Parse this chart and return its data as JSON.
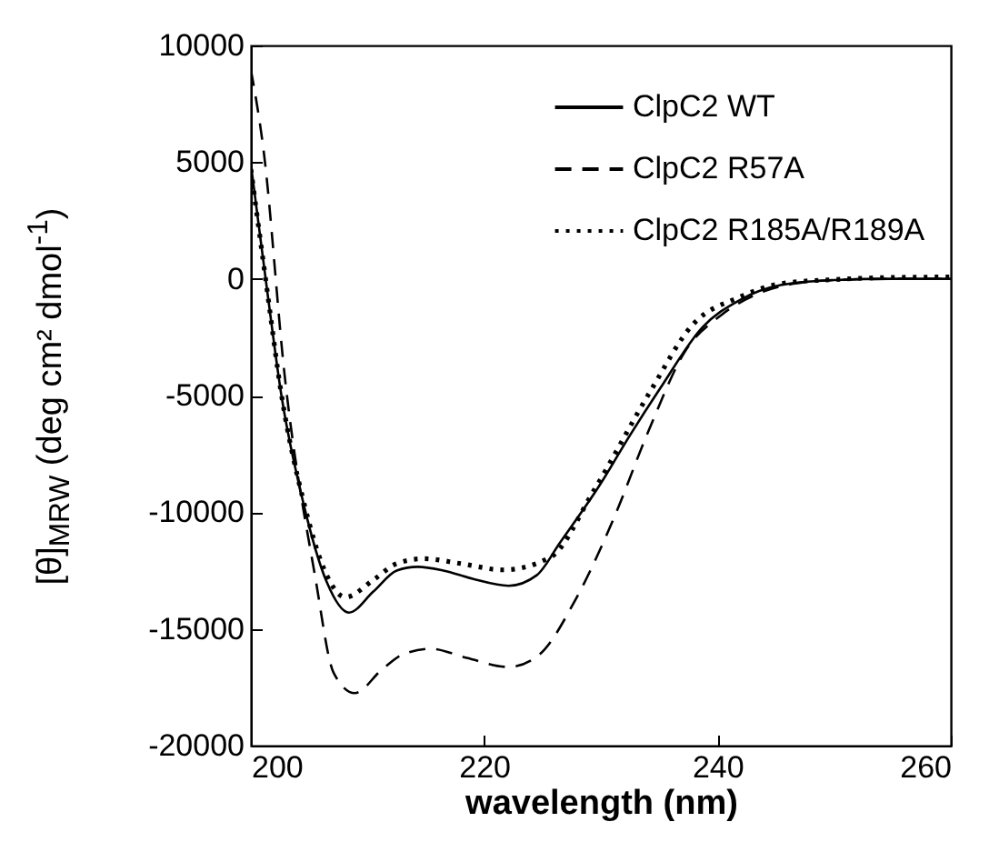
{
  "chart_data": {
    "type": "line",
    "xlabel": "wavelength (nm)",
    "ylabel": "[θ]$_{MRW}$ (deg cm² dmol$^{-1}$)",
    "xlim": [
      200,
      260
    ],
    "ylim": [
      -20000,
      10000
    ],
    "xticks": [
      200,
      220,
      240,
      260
    ],
    "yticks": [
      -20000,
      -15000,
      -10000,
      -5000,
      0,
      5000,
      10000
    ],
    "legend": "top right",
    "grid": false,
    "series": [
      {
        "name": "ClpC2 WT",
        "color": "#000000",
        "line_style": "solid",
        "x": [
          200,
          201.4,
          202.6,
          204.5,
          206.5,
          208.4,
          210.5,
          212.5,
          214.3,
          216.5,
          219,
          222.1,
          224.5,
          226.5,
          229.9,
          232.5,
          235.1,
          238.7,
          241.9,
          245.5,
          250,
          255,
          260
        ],
        "values": [
          4900,
          -520,
          -4940,
          -9610,
          -12990,
          -14300,
          -13400,
          -12500,
          -12340,
          -12500,
          -12850,
          -13150,
          -12700,
          -11300,
          -8840,
          -6700,
          -4680,
          -2080,
          -910,
          -260,
          -50,
          0,
          0
        ]
      },
      {
        "name": "ClpC2 R57A",
        "color": "#000000",
        "line_style": "dashed",
        "x": [
          200,
          201.1,
          202.9,
          205.5,
          207.1,
          208.9,
          211.2,
          213,
          215.4,
          218.5,
          222.1,
          224.7,
          227.8,
          231,
          234.1,
          237.2,
          240.3,
          243.4,
          246.5,
          250,
          255,
          260
        ],
        "values": [
          8960,
          5460,
          -4160,
          -12730,
          -16890,
          -17750,
          -16760,
          -16100,
          -15850,
          -16240,
          -16630,
          -16110,
          -13770,
          -10390,
          -6500,
          -3120,
          -1560,
          -650,
          -210,
          -50,
          0,
          0
        ]
      },
      {
        "name": "ClpC2 R185A/R189A",
        "color": "#000000",
        "line_style": "dotted",
        "x": [
          200,
          201.4,
          202.6,
          204.5,
          206.5,
          208.1,
          210.5,
          212.5,
          214.8,
          218,
          221.6,
          225.7,
          229.4,
          234.1,
          237.9,
          241.9,
          245.5,
          250,
          255,
          260
        ],
        "values": [
          4700,
          -520,
          -4900,
          -9500,
          -12700,
          -13640,
          -12900,
          -12200,
          -11990,
          -12200,
          -12470,
          -11920,
          -9070,
          -4940,
          -1950,
          -780,
          -200,
          -30,
          60,
          80
        ]
      }
    ]
  }
}
